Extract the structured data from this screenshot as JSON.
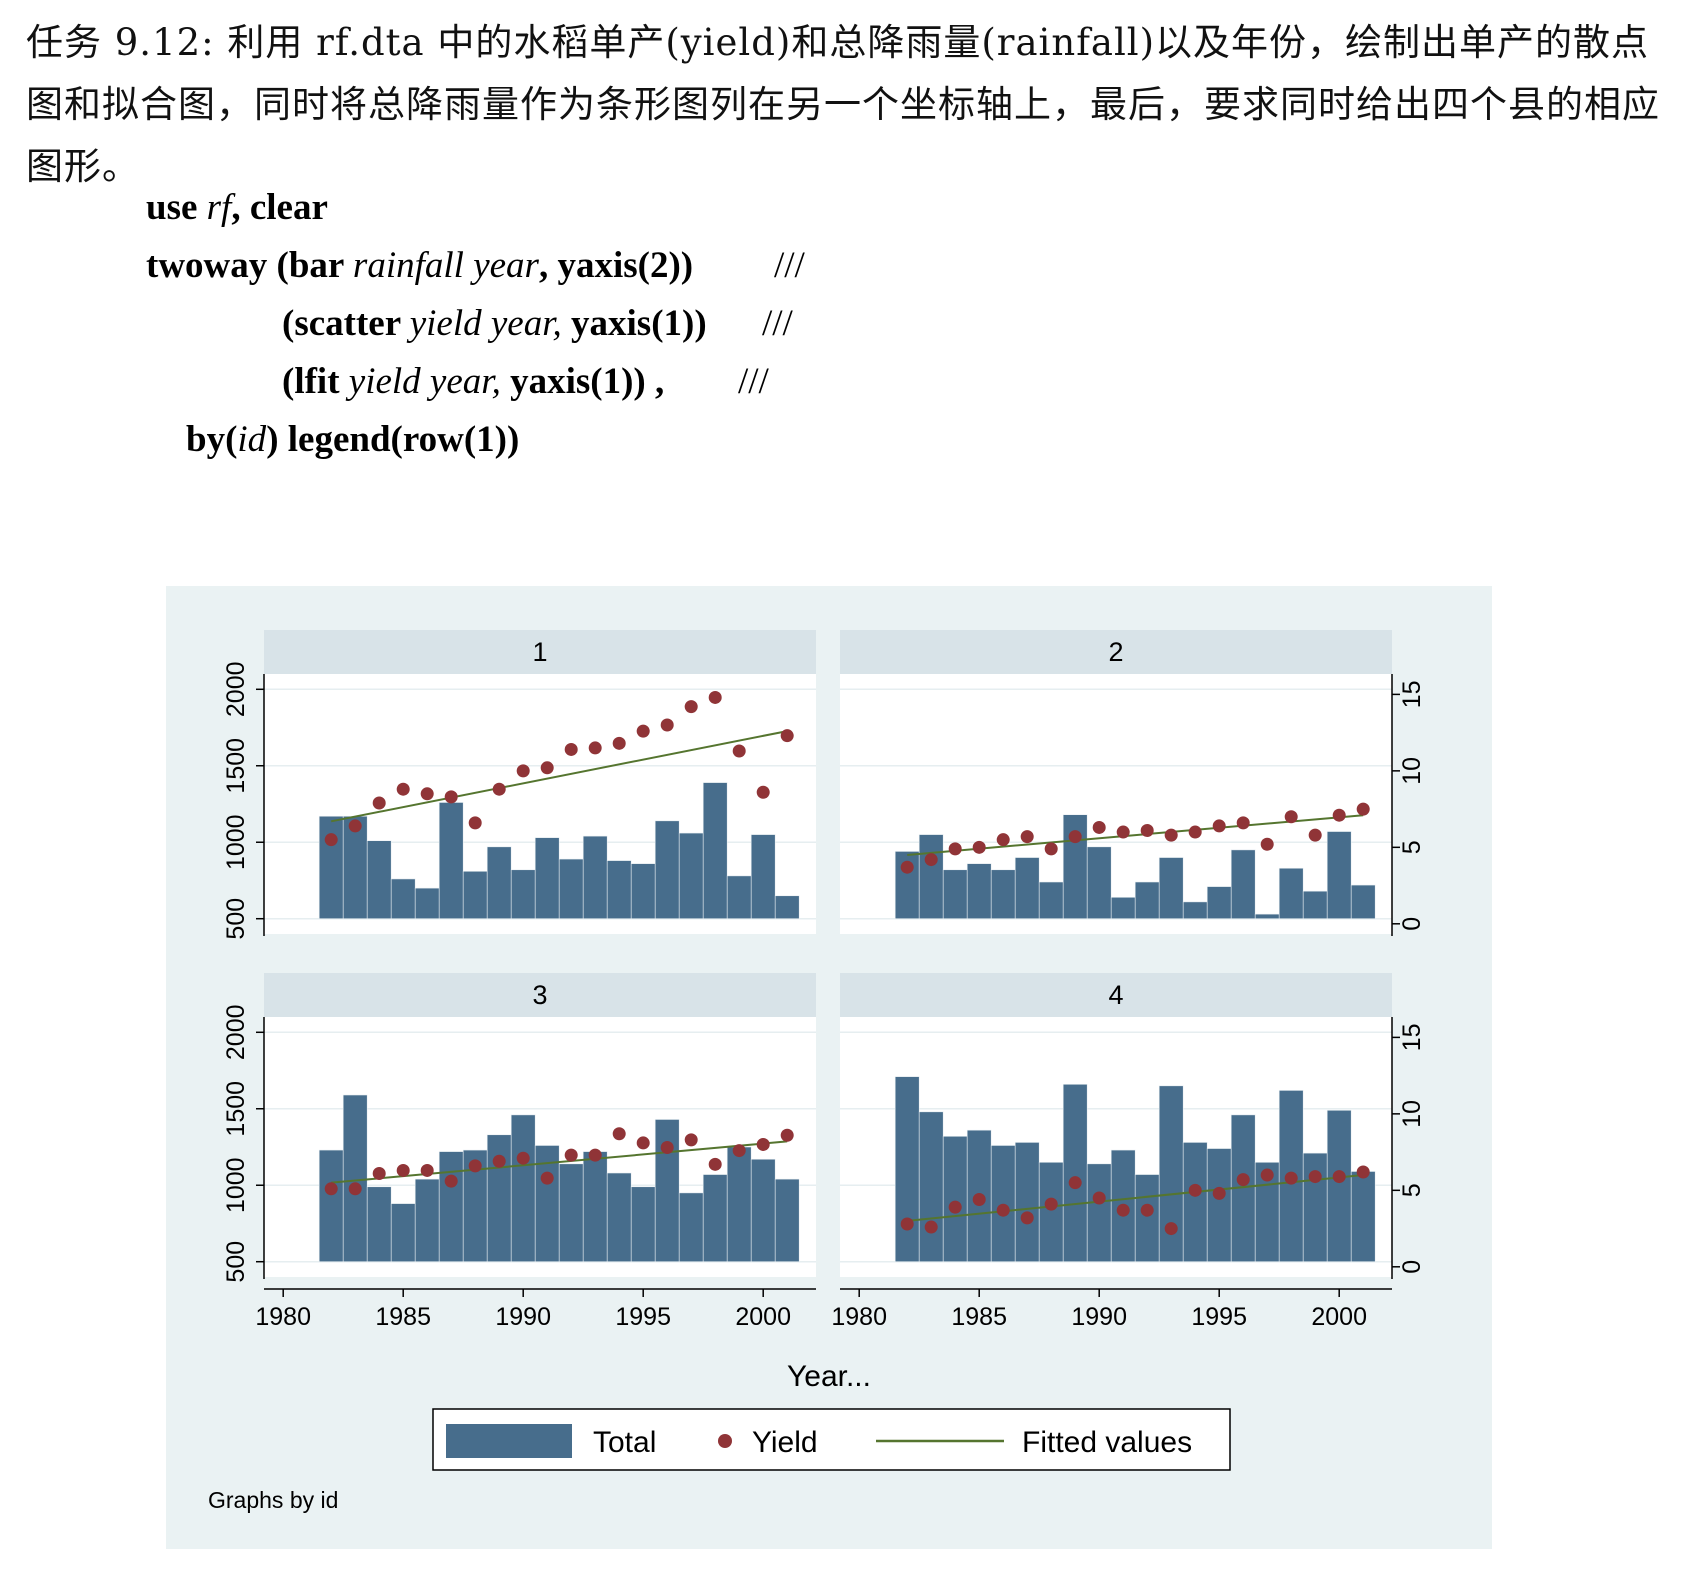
{
  "task": {
    "text": "任务 9.12: 利用 rf.dta 中的水稻单产(yield)和总降雨量(rainfall)以及年份，绘制出单产的散点图和拟合图，同时将总降雨量作为条形图列在另一个坐标轴上，最后，要求同时给出四个县的相应图形。"
  },
  "code": {
    "l1_cmd": "use ",
    "l1_var": "rf",
    "l1_rest": ", clear",
    "l2_cmd": "twoway (bar ",
    "l2_var": "rainfall year",
    "l2_rest": ", yaxis(2))",
    "l2_cont": "///",
    "l3_cmd": "(scatter ",
    "l3_var": "yield year,",
    "l3_rest": " yaxis(1))",
    "l3_cont": "///",
    "l4_cmd": "(lfit ",
    "l4_var": "yield year,",
    "l4_rest": " yaxis(1)) ,",
    "l4_cont": "///",
    "l5_cmd": "by(",
    "l5_var": "id",
    "l5_rest": ") legend(row(1))"
  },
  "chart_data": {
    "type": "bar",
    "xlabel": "Year...",
    "note": "Graphs by id",
    "left_axis": {
      "ticks": [
        500,
        1000,
        1500,
        2000
      ],
      "ylim": [
        400,
        2100
      ]
    },
    "right_axis": {
      "ticks": [
        0,
        5,
        10,
        15
      ],
      "ylim": [
        -0.667,
        16.333
      ]
    },
    "x_ticks": [
      1980,
      1985,
      1990,
      1995,
      2000
    ],
    "xlim": [
      1979.2,
      2002.2
    ],
    "years": [
      1982,
      1983,
      1984,
      1985,
      1986,
      1987,
      1988,
      1989,
      1990,
      1991,
      1992,
      1993,
      1994,
      1995,
      1996,
      1997,
      1998,
      1999,
      2000,
      2001
    ],
    "legend": {
      "total": "Total",
      "yield": "Yield",
      "fit": "Fitted values"
    },
    "colors": {
      "bar": "#476d8c",
      "yield": "#903437",
      "fit": "#55752f",
      "panel_bg": "#eaf2f3",
      "strip": "#d8e3e8"
    },
    "panels": [
      {
        "id": "1",
        "rainfall": [
          1170,
          1170,
          1010,
          760,
          700,
          1260,
          810,
          970,
          820,
          1030,
          890,
          1040,
          880,
          860,
          1140,
          1060,
          1390,
          780,
          1050,
          650
        ],
        "yield": [
          5.5,
          6.4,
          7.9,
          8.8,
          8.5,
          8.3,
          6.6,
          8.8,
          10.0,
          10.2,
          11.4,
          11.5,
          11.8,
          12.6,
          13.0,
          14.2,
          14.8,
          11.3,
          8.6,
          12.3
        ],
        "fit": [
          6.7,
          12.6
        ]
      },
      {
        "id": "2",
        "rainfall": [
          940,
          1050,
          820,
          860,
          820,
          900,
          740,
          1180,
          970,
          640,
          740,
          900,
          610,
          710,
          950,
          530,
          830,
          680,
          1070,
          720
        ],
        "yield": [
          3.7,
          4.2,
          4.9,
          5.0,
          5.5,
          5.7,
          4.9,
          5.7,
          6.3,
          6.0,
          6.1,
          5.8,
          6.0,
          6.4,
          6.6,
          5.2,
          7.0,
          5.8,
          7.1,
          7.5
        ],
        "fit": [
          4.5,
          7.1
        ]
      },
      {
        "id": "3",
        "rainfall": [
          1230,
          1590,
          990,
          880,
          1040,
          1220,
          1230,
          1330,
          1460,
          1260,
          1140,
          1220,
          1080,
          990,
          1430,
          950,
          1070,
          1250,
          1170,
          1040
        ],
        "yield": [
          5.1,
          5.1,
          6.1,
          6.3,
          6.3,
          5.6,
          6.6,
          6.9,
          7.1,
          5.8,
          7.3,
          7.3,
          8.7,
          8.1,
          7.8,
          8.3,
          6.7,
          7.6,
          8.0,
          8.6
        ],
        "fit": [
          5.5,
          8.2
        ]
      },
      {
        "id": "4",
        "rainfall": [
          1710,
          1480,
          1320,
          1360,
          1260,
          1280,
          1150,
          1660,
          1140,
          1230,
          1070,
          1650,
          1280,
          1240,
          1460,
          1150,
          1620,
          1210,
          1490,
          1090
        ],
        "yield": [
          2.8,
          2.6,
          3.9,
          4.4,
          3.7,
          3.2,
          4.1,
          5.5,
          4.5,
          3.7,
          3.7,
          2.5,
          5.0,
          4.8,
          5.7,
          6.0,
          5.8,
          5.9,
          5.9,
          6.2
        ],
        "fit": [
          3.0,
          6.0
        ]
      }
    ]
  }
}
